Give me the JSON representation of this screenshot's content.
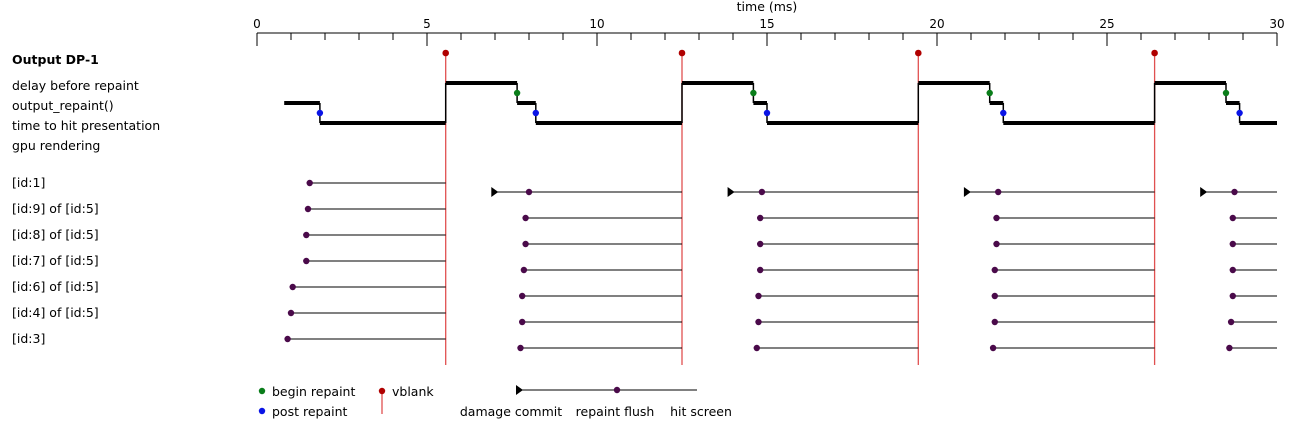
{
  "chart_data": {
    "type": "timeline",
    "axis": {
      "title": "time (ms)",
      "xlim": [
        0,
        30
      ],
      "major_ticks": [
        0,
        5,
        10,
        15,
        20,
        25,
        30
      ],
      "minor_step": 1
    },
    "output": {
      "title": "Output DP-1",
      "row_labels": [
        "delay before repaint",
        "output_repaint()",
        "time to hit presentation",
        "gpu rendering"
      ],
      "vblanks": [
        5.55,
        12.5,
        19.45,
        26.4
      ],
      "steps": [
        {
          "row": 1,
          "from": 0.8,
          "to": 1.85
        },
        {
          "row": 2,
          "from": 1.85,
          "to": 5.55
        },
        {
          "row": 0,
          "from": 5.55,
          "to": 7.65
        },
        {
          "row": 1,
          "from": 7.65,
          "to": 8.2
        },
        {
          "row": 2,
          "from": 8.2,
          "to": 12.5
        },
        {
          "row": 0,
          "from": 12.5,
          "to": 14.6
        },
        {
          "row": 1,
          "from": 14.6,
          "to": 15.0
        },
        {
          "row": 2,
          "from": 15.0,
          "to": 19.45
        },
        {
          "row": 0,
          "from": 19.45,
          "to": 21.55
        },
        {
          "row": 1,
          "from": 21.55,
          "to": 21.95
        },
        {
          "row": 2,
          "from": 21.95,
          "to": 26.4
        },
        {
          "row": 0,
          "from": 26.4,
          "to": 28.5
        },
        {
          "row": 1,
          "from": 28.5,
          "to": 28.9
        },
        {
          "row": 2,
          "from": 28.9,
          "to": 30
        }
      ],
      "begin_repaint": [
        7.65,
        14.6,
        21.55,
        28.5
      ],
      "post_repaint": [
        1.85,
        8.2,
        15.0,
        21.95,
        28.9
      ]
    },
    "surfaces": [
      {
        "label": "[id:1]",
        "segments": [
          {
            "repaint_flush": 1.55,
            "end": 5.55
          },
          {
            "commit": 6.95,
            "repaint_flush": 8.0,
            "end": 12.5
          },
          {
            "commit": 13.9,
            "repaint_flush": 14.85,
            "end": 19.45
          },
          {
            "commit": 20.85,
            "repaint_flush": 21.8,
            "end": 26.4
          },
          {
            "commit": 27.8,
            "repaint_flush": 28.75,
            "end": 30
          }
        ]
      },
      {
        "label": "[id:9] of [id:5]",
        "segments": [
          {
            "repaint_flush": 1.5,
            "end": 5.55
          },
          {
            "repaint_flush": 7.9,
            "end": 12.5
          },
          {
            "repaint_flush": 14.8,
            "end": 19.45
          },
          {
            "repaint_flush": 21.75,
            "end": 26.4
          },
          {
            "repaint_flush": 28.7,
            "end": 30
          }
        ]
      },
      {
        "label": "[id:8] of [id:5]",
        "segments": [
          {
            "repaint_flush": 1.45,
            "end": 5.55
          },
          {
            "repaint_flush": 7.9,
            "end": 12.5
          },
          {
            "repaint_flush": 14.8,
            "end": 19.45
          },
          {
            "repaint_flush": 21.75,
            "end": 26.4
          },
          {
            "repaint_flush": 28.7,
            "end": 30
          }
        ]
      },
      {
        "label": "[id:7] of [id:5]",
        "segments": [
          {
            "repaint_flush": 1.45,
            "end": 5.55
          },
          {
            "repaint_flush": 7.85,
            "end": 12.5
          },
          {
            "repaint_flush": 14.8,
            "end": 19.45
          },
          {
            "repaint_flush": 21.7,
            "end": 26.4
          },
          {
            "repaint_flush": 28.7,
            "end": 30
          }
        ]
      },
      {
        "label": "[id:6] of [id:5]",
        "segments": [
          {
            "repaint_flush": 1.05,
            "end": 5.55
          },
          {
            "repaint_flush": 7.8,
            "end": 12.5
          },
          {
            "repaint_flush": 14.75,
            "end": 19.45
          },
          {
            "repaint_flush": 21.7,
            "end": 26.4
          },
          {
            "repaint_flush": 28.7,
            "end": 30
          }
        ]
      },
      {
        "label": "[id:4] of [id:5]",
        "segments": [
          {
            "repaint_flush": 1.0,
            "end": 5.55
          },
          {
            "repaint_flush": 7.8,
            "end": 12.5
          },
          {
            "repaint_flush": 14.75,
            "end": 19.45
          },
          {
            "repaint_flush": 21.7,
            "end": 26.4
          },
          {
            "repaint_flush": 28.65,
            "end": 30
          }
        ]
      },
      {
        "label": "[id:3]",
        "segments": [
          {
            "repaint_flush": 0.9,
            "end": 5.55
          },
          {
            "repaint_flush": 7.75,
            "end": 12.5
          },
          {
            "repaint_flush": 14.7,
            "end": 19.45
          },
          {
            "repaint_flush": 21.65,
            "end": 26.4
          },
          {
            "repaint_flush": 28.6,
            "end": 30
          }
        ]
      }
    ],
    "legend": {
      "begin_repaint": "begin repaint",
      "post_repaint": "post repaint",
      "vblank": "vblank",
      "damage_commit": "damage commit",
      "repaint_flush": "repaint flush",
      "hit_screen": "hit screen"
    },
    "colors": {
      "begin_repaint": "#0a7d1a",
      "post_repaint": "#0a14e6",
      "vblank_marker": "#b00000",
      "vblank_line": "#e05050",
      "repaint_flush": "#4a0a4a",
      "step": "#000000"
    }
  }
}
